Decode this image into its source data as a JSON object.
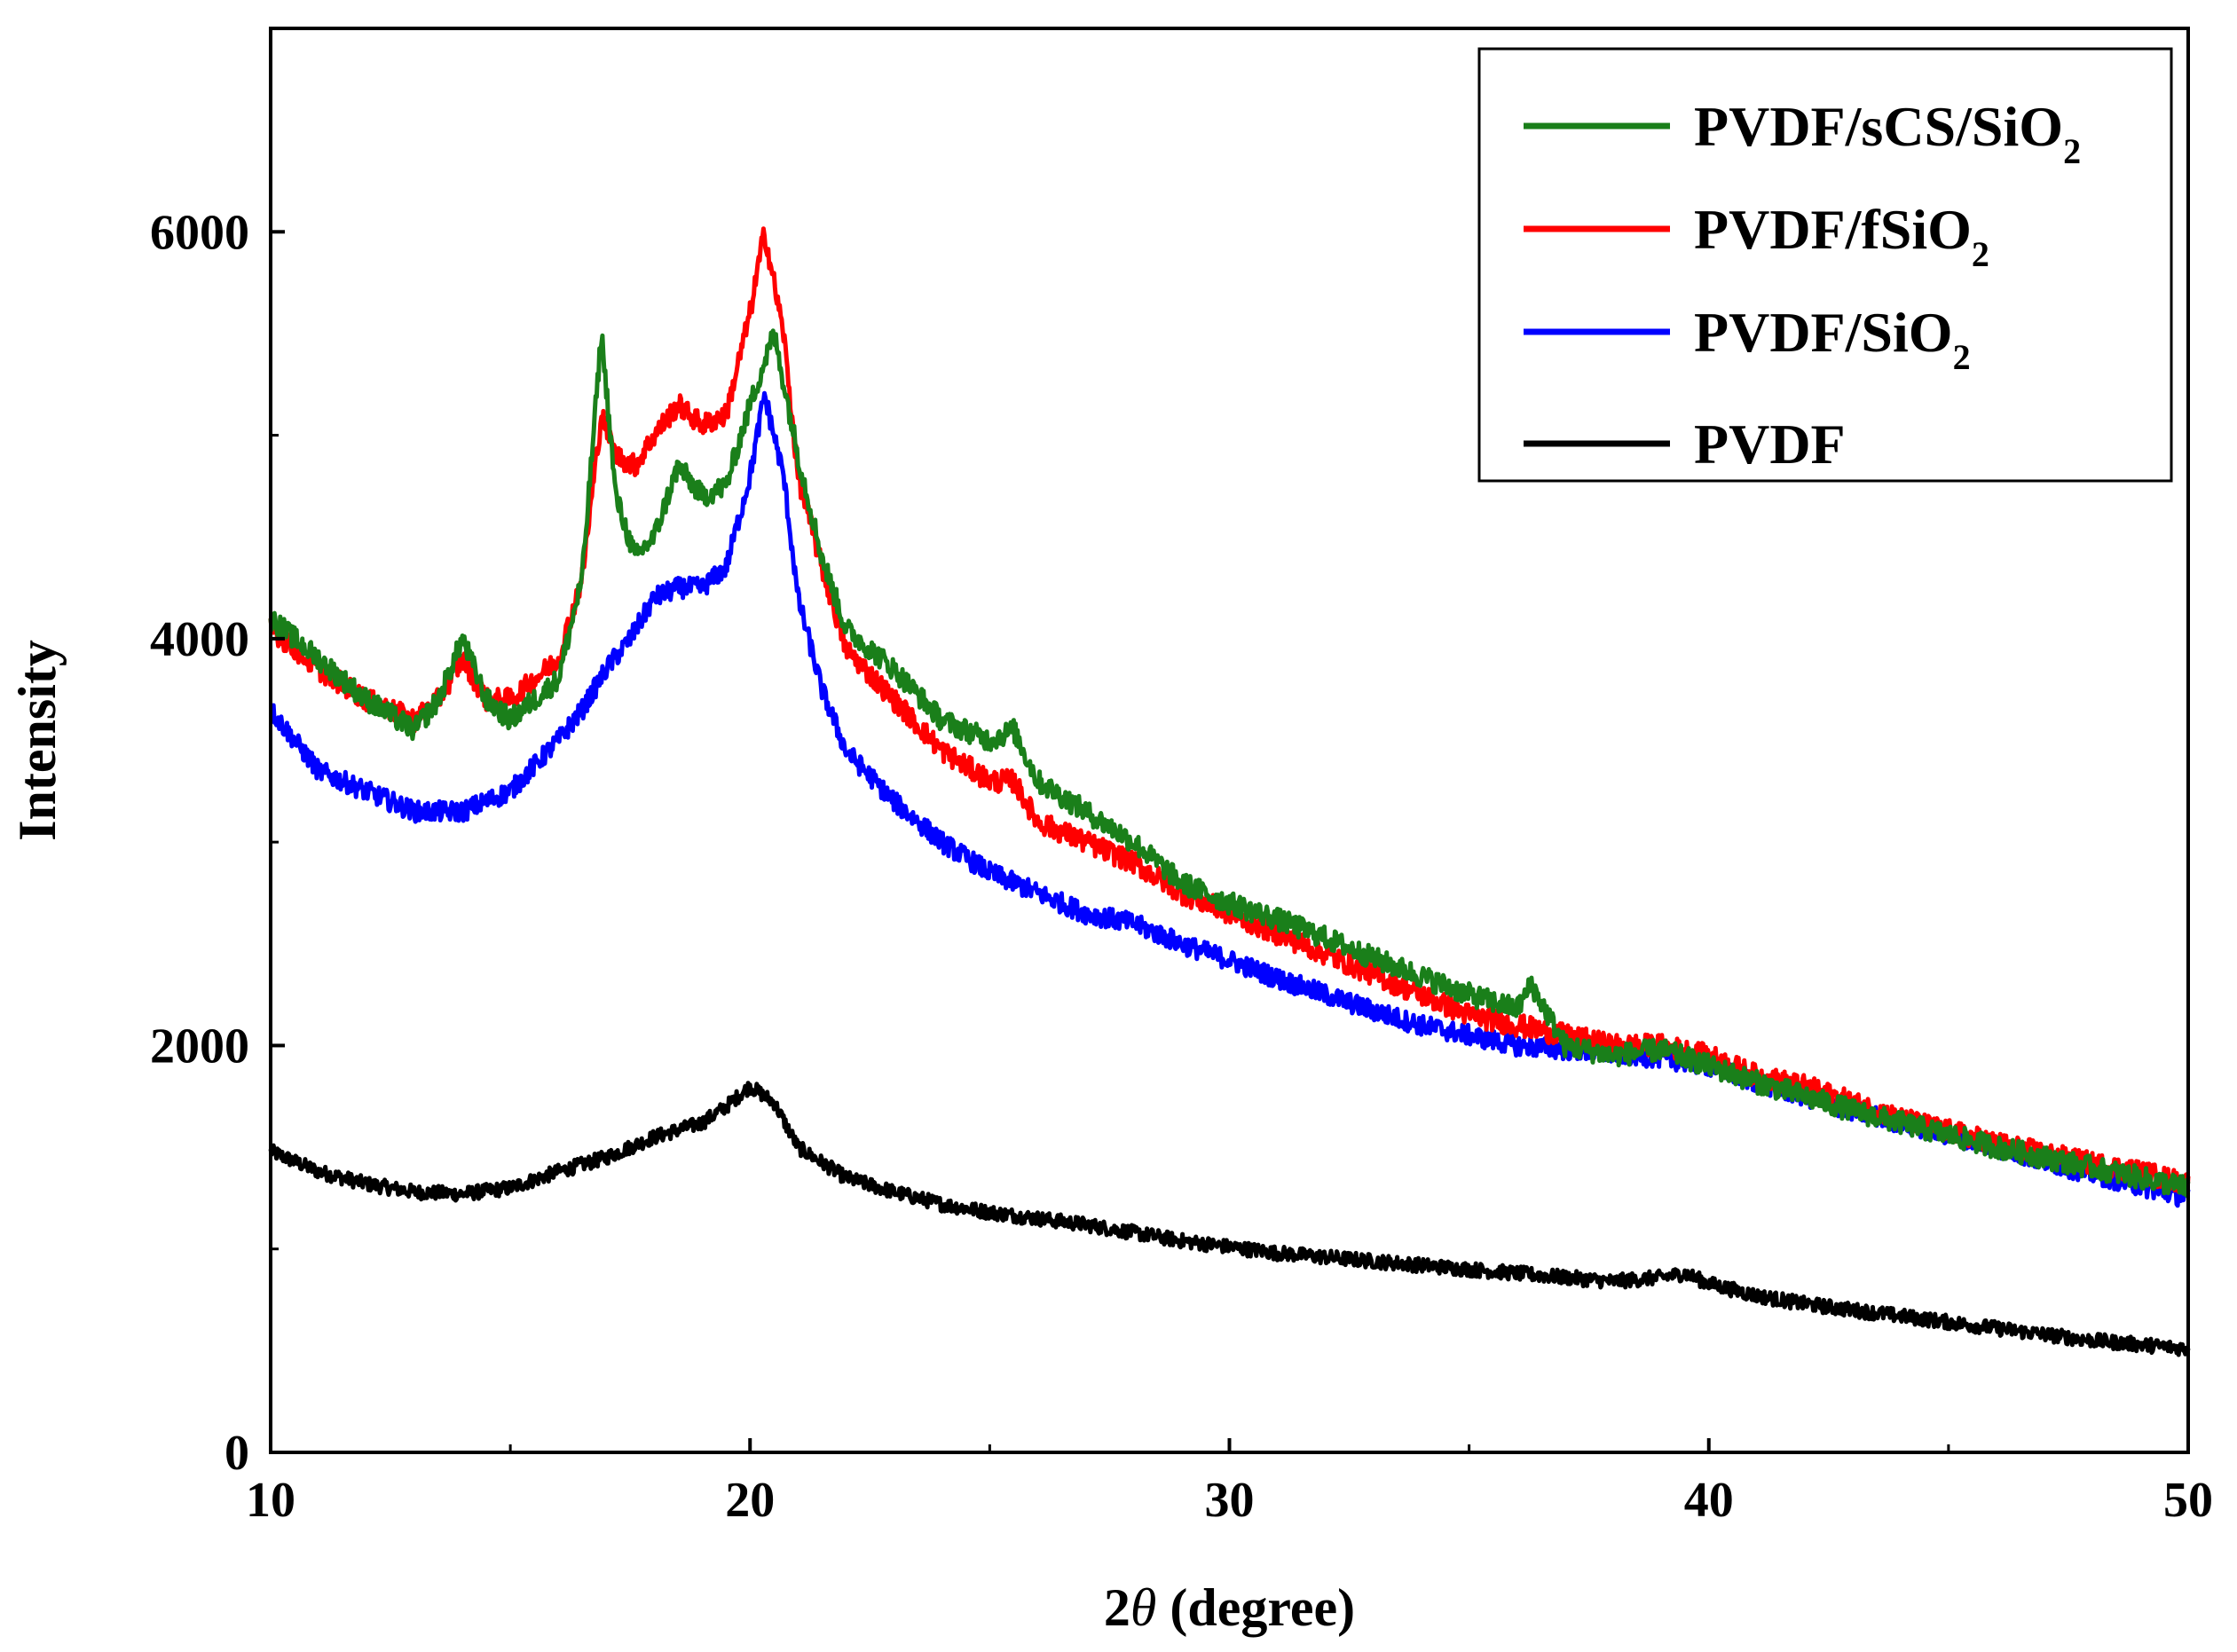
{
  "chart_data": {
    "type": "line",
    "title": "",
    "xlabel_main": "2",
    "xlabel_theta": "θ",
    "xlabel_unit": " (degree)",
    "ylabel": "Intensity",
    "xlim": [
      10,
      50
    ],
    "ylim": [
      0,
      7000
    ],
    "x_ticks": [
      10,
      20,
      30,
      40,
      50
    ],
    "x_tick_labels": [
      "10",
      "20",
      "30",
      "40",
      "50"
    ],
    "y_ticks": [
      0,
      2000,
      4000,
      6000
    ],
    "y_tick_labels": [
      "0",
      "2000",
      "4000",
      "6000"
    ],
    "grid": false,
    "legend_position": "top-right",
    "series": [
      {
        "name": "PVDF/sCS/SiO2",
        "label_main": "PVDF/sCS/SiO",
        "label_sub": "2",
        "color": "#1a7f1a",
        "noise": 55,
        "x": [
          10,
          11,
          12,
          13,
          13.5,
          14,
          14.5,
          15,
          16,
          16.5,
          16.9,
          17.2,
          17.6,
          18,
          18.5,
          19,
          19.5,
          20,
          20.5,
          21,
          21.5,
          22,
          23,
          24,
          25,
          25.5,
          26,
          27,
          28,
          29,
          30,
          31,
          32,
          33,
          34,
          35,
          36,
          36.3,
          37,
          38,
          39,
          40,
          41,
          42,
          43,
          44,
          45,
          46,
          47,
          48,
          49,
          50
        ],
        "y": [
          4100,
          3900,
          3700,
          3550,
          3700,
          4000,
          3700,
          3600,
          3800,
          4300,
          5500,
          4700,
          4400,
          4500,
          4850,
          4700,
          4750,
          5150,
          5500,
          4900,
          4400,
          4050,
          3850,
          3600,
          3500,
          3550,
          3300,
          3150,
          3000,
          2800,
          2700,
          2620,
          2530,
          2430,
          2340,
          2250,
          2180,
          2300,
          2000,
          1950,
          1980,
          1900,
          1820,
          1750,
          1680,
          1620,
          1560,
          1500,
          1450,
          1400,
          1350,
          1300
        ]
      },
      {
        "name": "PVDF/fSiO2",
        "label_main": "PVDF/fSiO",
        "label_sub": "2",
        "color": "#ff0000",
        "noise": 55,
        "x": [
          10,
          11,
          12,
          13,
          13.5,
          14,
          14.5,
          15,
          16,
          16.5,
          16.9,
          17.2,
          17.6,
          18,
          18.5,
          19,
          19.5,
          20,
          20.3,
          20.7,
          21,
          21.5,
          22,
          23,
          24,
          25,
          25.5,
          26,
          27,
          28,
          29,
          30,
          31,
          32,
          33,
          34,
          35,
          36,
          37,
          38,
          39,
          40,
          41,
          42,
          43,
          44,
          45,
          46,
          47,
          48,
          49,
          50
        ],
        "y": [
          4050,
          3850,
          3700,
          3600,
          3700,
          3900,
          3700,
          3700,
          3900,
          4300,
          5100,
          4900,
          4850,
          5000,
          5150,
          5050,
          5100,
          5600,
          6000,
          5500,
          4800,
          4350,
          3950,
          3700,
          3450,
          3300,
          3300,
          3100,
          3000,
          2900,
          2750,
          2650,
          2550,
          2450,
          2350,
          2250,
          2150,
          2100,
          2050,
          2000,
          2000,
          1950,
          1850,
          1800,
          1720,
          1640,
          1580,
          1520,
          1470,
          1420,
          1380,
          1320
        ]
      },
      {
        "name": "PVDF/SiO2",
        "label_main": "PVDF/SiO",
        "label_sub": "2",
        "color": "#0000ff",
        "noise": 50,
        "x": [
          10,
          11,
          12,
          13,
          14,
          15,
          16,
          16.5,
          17,
          17.5,
          18,
          18.5,
          19,
          19.5,
          20,
          20.3,
          20.7,
          21,
          21.5,
          22,
          23,
          24,
          25,
          26,
          27,
          28,
          29,
          30,
          31,
          32,
          33,
          34,
          35,
          36,
          37,
          38,
          39,
          40,
          41,
          42,
          43,
          44,
          45,
          46,
          47,
          48,
          49,
          50
        ],
        "y": [
          3650,
          3350,
          3250,
          3150,
          3150,
          3250,
          3500,
          3650,
          3850,
          4000,
          4200,
          4250,
          4250,
          4350,
          4800,
          5200,
          4800,
          4200,
          3750,
          3450,
          3200,
          3000,
          2850,
          2750,
          2650,
          2600,
          2500,
          2420,
          2330,
          2250,
          2170,
          2100,
          2050,
          2000,
          1980,
          1960,
          1940,
          1900,
          1820,
          1750,
          1680,
          1620,
          1560,
          1500,
          1430,
          1370,
          1310,
          1250
        ]
      },
      {
        "name": "PVDF",
        "label_main": "PVDF",
        "label_sub": "",
        "color": "#000000",
        "noise": 35,
        "x": [
          10,
          11,
          12,
          13,
          14,
          15,
          16,
          17,
          18,
          19,
          19.5,
          20,
          20.5,
          21,
          22,
          23,
          24,
          25,
          26,
          27,
          28,
          29,
          30,
          31,
          32,
          33,
          34,
          35,
          36,
          37,
          38,
          39,
          39.5,
          40,
          41,
          42,
          43,
          44,
          45,
          46,
          47,
          48,
          49,
          50
        ],
        "y": [
          1480,
          1380,
          1320,
          1280,
          1270,
          1300,
          1380,
          1450,
          1550,
          1620,
          1700,
          1800,
          1720,
          1500,
          1350,
          1280,
          1220,
          1180,
          1150,
          1120,
          1080,
          1040,
          1010,
          980,
          960,
          940,
          920,
          900,
          880,
          860,
          840,
          860,
          880,
          830,
          770,
          730,
          700,
          670,
          640,
          610,
          580,
          550,
          530,
          510
        ]
      }
    ]
  }
}
